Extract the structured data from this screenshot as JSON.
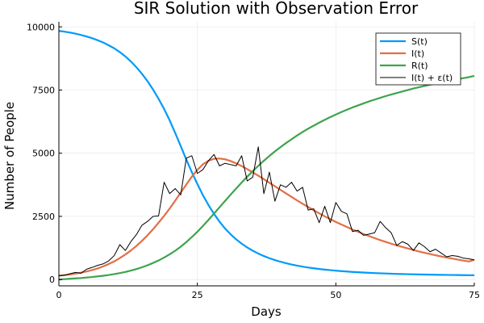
{
  "chart_data": {
    "type": "line",
    "title": "SIR Solution with Observation Error",
    "xlabel": "Days",
    "ylabel": "Number of People",
    "xlim": [
      0,
      75
    ],
    "ylim": [
      -250,
      10200
    ],
    "xticks": [
      0,
      25,
      50,
      75
    ],
    "yticks": [
      0,
      2500,
      5000,
      7500,
      10000
    ],
    "grid": true,
    "legend_position": "top-right",
    "x": [
      0,
      1,
      2,
      3,
      4,
      5,
      6,
      7,
      8,
      9,
      10,
      11,
      12,
      13,
      14,
      15,
      16,
      17,
      18,
      19,
      20,
      21,
      22,
      23,
      24,
      25,
      26,
      27,
      28,
      29,
      30,
      31,
      32,
      33,
      34,
      35,
      36,
      37,
      38,
      39,
      40,
      41,
      42,
      43,
      44,
      45,
      46,
      47,
      48,
      49,
      50,
      51,
      52,
      53,
      54,
      55,
      56,
      57,
      58,
      59,
      60,
      61,
      62,
      63,
      64,
      65,
      66,
      67,
      68,
      69,
      70,
      71,
      72,
      73,
      74,
      75
    ],
    "series": [
      {
        "name": "S(t)",
        "color": "#009af9",
        "values": [
          9840,
          9810,
          9775,
          9730,
          9680,
          9620,
          9550,
          9470,
          9380,
          9270,
          9150,
          9000,
          8830,
          8630,
          8400,
          8140,
          7850,
          7520,
          7150,
          6750,
          6300,
          5800,
          5280,
          4750,
          4250,
          3780,
          3340,
          2950,
          2600,
          2290,
          2020,
          1790,
          1590,
          1420,
          1270,
          1140,
          1030,
          930,
          845,
          770,
          705,
          645,
          595,
          550,
          510,
          475,
          445,
          418,
          393,
          371,
          351,
          333,
          317,
          302,
          289,
          277,
          266,
          256,
          247,
          239,
          231,
          224,
          218,
          212,
          207,
          202,
          197,
          193,
          189,
          186,
          183,
          180,
          177,
          174,
          172,
          170
        ]
      },
      {
        "name": "I(t)",
        "color": "#e26f46",
        "values": [
          155,
          175,
          200,
          235,
          275,
          320,
          375,
          440,
          520,
          615,
          720,
          850,
          990,
          1150,
          1330,
          1530,
          1750,
          1990,
          2250,
          2520,
          2810,
          3120,
          3440,
          3760,
          4070,
          4340,
          4560,
          4700,
          4780,
          4790,
          4760,
          4690,
          4600,
          4490,
          4370,
          4240,
          4110,
          3970,
          3830,
          3690,
          3550,
          3410,
          3270,
          3130,
          3000,
          2870,
          2740,
          2620,
          2500,
          2390,
          2280,
          2180,
          2080,
          1980,
          1890,
          1800,
          1720,
          1640,
          1560,
          1490,
          1420,
          1350,
          1290,
          1230,
          1170,
          1110,
          1060,
          1010,
          960,
          915,
          870,
          830,
          790,
          750,
          715,
          780
        ]
      },
      {
        "name": "R(t)",
        "color": "#3da44d",
        "values": [
          0,
          15,
          30,
          45,
          60,
          80,
          100,
          125,
          150,
          180,
          215,
          255,
          300,
          355,
          415,
          485,
          565,
          655,
          755,
          870,
          1000,
          1140,
          1300,
          1480,
          1680,
          1890,
          2120,
          2360,
          2610,
          2860,
          3110,
          3360,
          3600,
          3840,
          4070,
          4290,
          4500,
          4700,
          4890,
          5070,
          5240,
          5400,
          5550,
          5700,
          5840,
          5970,
          6090,
          6210,
          6320,
          6430,
          6530,
          6630,
          6720,
          6810,
          6890,
          6970,
          7050,
          7120,
          7190,
          7260,
          7320,
          7380,
          7440,
          7500,
          7560,
          7610,
          7660,
          7710,
          7760,
          7800,
          7850,
          7890,
          7930,
          7970,
          8010,
          8060
        ]
      },
      {
        "name": "I(t) + ε(t)",
        "color": "#000000",
        "values": [
          150,
          170,
          230,
          280,
          250,
          410,
          480,
          560,
          620,
          740,
          950,
          1380,
          1150,
          1500,
          1780,
          2150,
          2300,
          2500,
          2520,
          3850,
          3400,
          3600,
          3350,
          4800,
          4900,
          4200,
          4350,
          4700,
          4950,
          4500,
          4600,
          4550,
          4500,
          4900,
          3900,
          4050,
          5250,
          3400,
          4250,
          3100,
          3750,
          3650,
          3850,
          3500,
          3650,
          2750,
          2800,
          2250,
          2900,
          2250,
          3050,
          2700,
          2600,
          1900,
          1950,
          1750,
          1800,
          1850,
          2300,
          2050,
          1850,
          1350,
          1500,
          1400,
          1150,
          1450,
          1300,
          1100,
          1200,
          1050,
          900,
          950,
          920,
          850,
          820,
          780
        ]
      }
    ]
  }
}
